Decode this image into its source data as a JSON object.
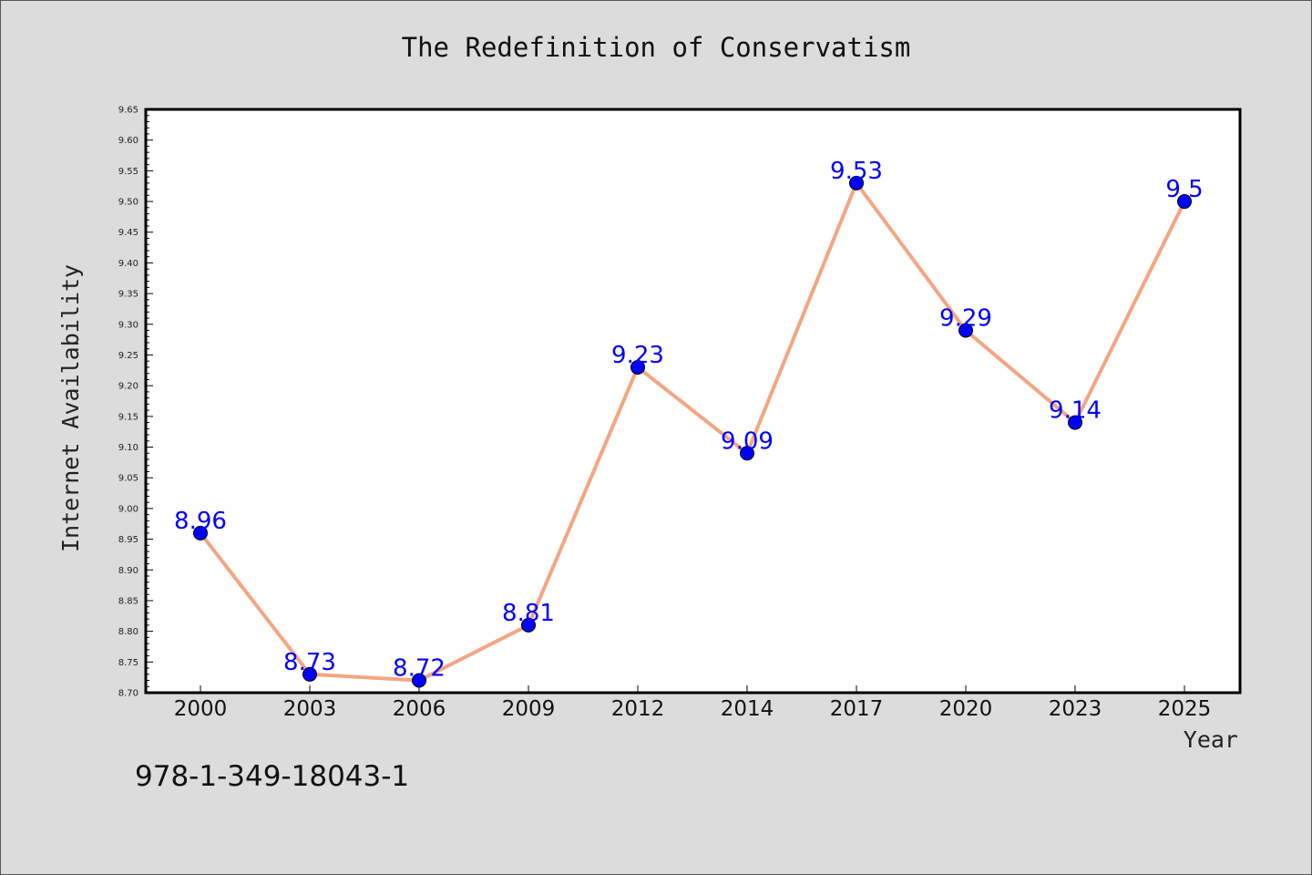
{
  "chart_data": {
    "type": "line",
    "title": "The Redefinition of Conservatism",
    "xlabel": "Year",
    "ylabel": "Internet Availability",
    "categories": [
      "2000",
      "2003",
      "2006",
      "2009",
      "2012",
      "2014",
      "2017",
      "2020",
      "2023",
      "2025"
    ],
    "series": [
      {
        "values": [
          8.96,
          8.73,
          8.72,
          8.81,
          9.23,
          9.09,
          9.53,
          9.29,
          9.14,
          9.5
        ]
      }
    ],
    "data_labels": [
      "8.96",
      "8.73",
      "8.72",
      "8.81",
      "9.23",
      "9.09",
      "9.53",
      "9.29",
      "9.14",
      "9.5"
    ],
    "ylim": [
      8.7,
      9.65
    ],
    "yticks": [
      "8.70",
      "8.75",
      "8.80",
      "8.85",
      "8.90",
      "8.95",
      "9.00",
      "9.05",
      "9.10",
      "9.15",
      "9.20",
      "9.25",
      "9.30",
      "9.35",
      "9.40",
      "9.45",
      "9.50",
      "9.55",
      "9.60",
      "9.65"
    ],
    "grid": false,
    "colors": {
      "line": "#f4a582",
      "marker": "#0000ff",
      "data_label": "#0000ff",
      "plot_background": "#ffffff",
      "figure_background": "#dcdcdc"
    }
  },
  "footer": {
    "isbn": "978-1-349-18043-1"
  }
}
